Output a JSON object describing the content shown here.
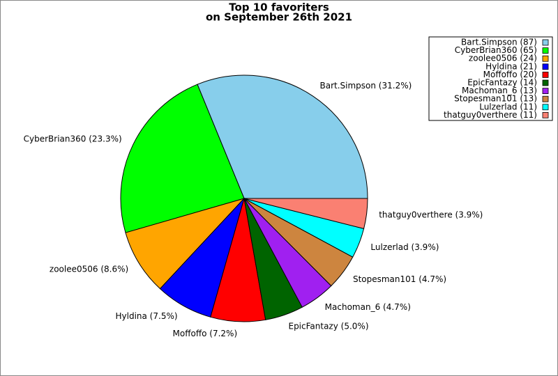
{
  "chart_data": {
    "type": "pie",
    "title": [
      "Top 10 favoriters",
      "on September 26th 2021"
    ],
    "categories": [
      "Bart.Simpson (87)",
      "CyberBrian360 (65)",
      "zoolee0506 (24)",
      "Hyldina (21)",
      "Moffoffo (20)",
      "EpicFantazy (14)",
      "Machoman_6 (13)",
      "Stopesman101 (13)",
      "Lulzerlad (11)",
      "thatguy0verthere (11)"
    ],
    "values": [
      87,
      65,
      24,
      21,
      20,
      14,
      13,
      13,
      11,
      11
    ],
    "value_labels": [
      "Bart.Simpson (31.2%)",
      "CyberBrian360 (23.3%)",
      "zoolee0506 (8.6%)",
      "Hyldina (7.5%)",
      "Moffoffo (7.2%)",
      "EpicFantazy (5.0%)",
      "Machoman_6 (4.7%)",
      "Stopesman101 (4.7%)",
      "Lulzerlad (3.9%)",
      "thatguy0verthere (3.9%)"
    ],
    "colors": [
      "#87ceeb",
      "#00ff00",
      "#ffa500",
      "#0000ff",
      "#ff0000",
      "#006400",
      "#a020f0",
      "#cd853f",
      "#00ffff",
      "#fa8072"
    ],
    "legend": "upper right"
  }
}
